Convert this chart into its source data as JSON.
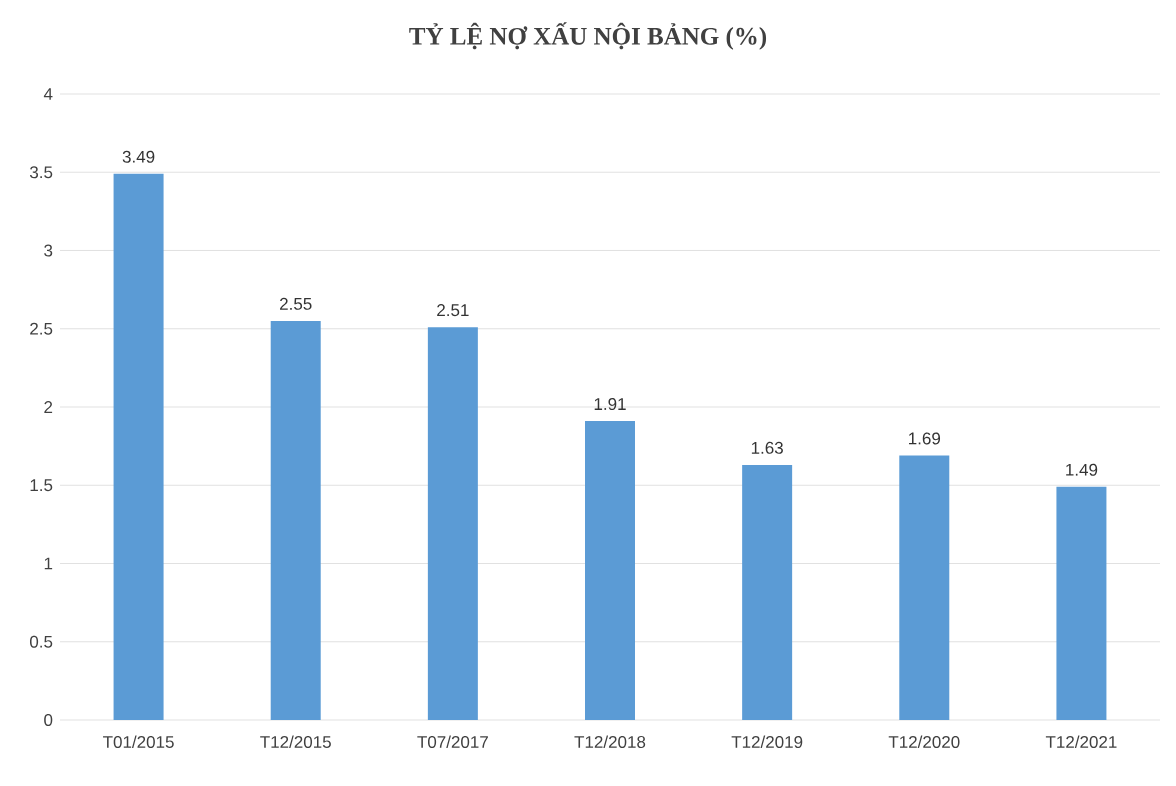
{
  "chart_data": {
    "type": "bar",
    "title": "TỶ LỆ NỢ XẤU NỘI BẢNG (%)",
    "categories": [
      "T01/2015",
      "T12/2015",
      "T07/2017",
      "T12/2018",
      "T12/2019",
      "T12/2020",
      "T12/2021"
    ],
    "values": [
      3.49,
      2.55,
      2.51,
      1.91,
      1.63,
      1.69,
      1.49
    ],
    "color": "#5b9bd5",
    "ylim": [
      0,
      4
    ],
    "yticks": [
      0,
      0.5,
      1,
      1.5,
      2,
      2.5,
      3,
      3.5,
      4
    ],
    "grid": "y",
    "data_labels": true
  }
}
